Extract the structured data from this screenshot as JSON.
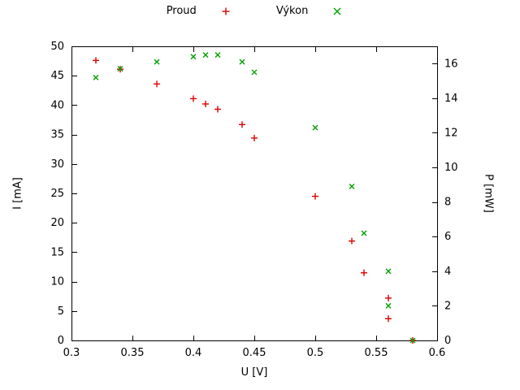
{
  "chart_data": {
    "type": "scatter",
    "title": "",
    "xlabel": "U [V]",
    "ylabel_left": "I [mA]",
    "ylabel_right": "P [mW]",
    "xlim": [
      0.3,
      0.6
    ],
    "ylim_left": [
      0,
      50
    ],
    "ylim_right": [
      0,
      17
    ],
    "xticks": [
      0.3,
      0.35,
      0.4,
      0.45,
      0.5,
      0.55,
      0.6
    ],
    "xtick_labels": [
      "0.3",
      "0.35",
      "0.4",
      "0.45",
      "0.5",
      "0.55",
      "0.6"
    ],
    "yticks_left": [
      0,
      5,
      10,
      15,
      20,
      25,
      30,
      35,
      40,
      45,
      50
    ],
    "ytick_labels_left": [
      "0",
      "5",
      "10",
      "15",
      "20",
      "25",
      "30",
      "35",
      "40",
      "45",
      "50"
    ],
    "yticks_right": [
      0,
      2,
      4,
      6,
      8,
      10,
      12,
      14,
      16
    ],
    "ytick_labels_right": [
      "0",
      "2",
      "4",
      "6",
      "8",
      "10",
      "12",
      "14",
      "16"
    ],
    "grid": false,
    "legend_position": "top-center-outside",
    "series": [
      {
        "name": "Proud",
        "axis": "left",
        "marker": "plus",
        "color": "#dd0000",
        "x": [
          0.32,
          0.34,
          0.37,
          0.4,
          0.41,
          0.42,
          0.44,
          0.45,
          0.5,
          0.53,
          0.54,
          0.56,
          0.56,
          0.58
        ],
        "y": [
          47.6,
          46.1,
          43.6,
          41.1,
          40.2,
          39.3,
          36.7,
          34.4,
          24.5,
          16.9,
          11.5,
          7.2,
          3.7,
          0.0
        ]
      },
      {
        "name": "Výkon",
        "axis": "right",
        "marker": "cross",
        "color": "#00a000",
        "x": [
          0.32,
          0.34,
          0.37,
          0.4,
          0.41,
          0.42,
          0.44,
          0.45,
          0.5,
          0.53,
          0.54,
          0.56,
          0.56,
          0.58
        ],
        "y": [
          15.2,
          15.7,
          16.1,
          16.4,
          16.5,
          16.5,
          16.1,
          15.5,
          12.3,
          8.9,
          6.2,
          4.0,
          2.0,
          0.0
        ]
      }
    ]
  }
}
